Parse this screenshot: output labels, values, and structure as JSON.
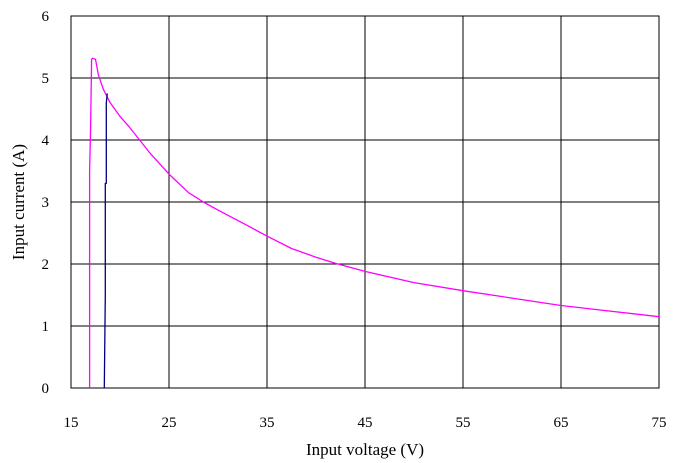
{
  "chart_data": {
    "type": "line",
    "title": "",
    "xlabel": "Input voltage (V)",
    "ylabel": "Input current (A)",
    "xlim": [
      15,
      75
    ],
    "ylim": [
      0,
      6
    ],
    "xticks": [
      15,
      25,
      35,
      45,
      55,
      65,
      75
    ],
    "yticks": [
      0,
      1,
      2,
      3,
      4,
      5,
      6
    ],
    "grid": true,
    "legend": "none",
    "series": [
      {
        "color": "#ff00ff",
        "x": [
          16.9,
          16.9,
          17.0,
          17.1,
          17.2,
          17.5,
          17.8,
          18.3,
          19.0,
          20.0,
          21.0,
          22.0,
          23.0,
          25.0,
          27.0,
          28.5,
          30.0,
          33.0,
          35.0,
          37.5,
          40.0,
          42.0,
          45.0,
          50.0,
          55.0,
          60.0,
          65.0,
          70.0,
          75.0
        ],
        "y": [
          0,
          3.5,
          4.2,
          5.3,
          5.32,
          5.3,
          5.05,
          4.82,
          4.6,
          4.38,
          4.2,
          4.0,
          3.8,
          3.45,
          3.15,
          3.0,
          2.87,
          2.62,
          2.45,
          2.25,
          2.11,
          2.01,
          1.88,
          1.7,
          1.57,
          1.45,
          1.33,
          1.24,
          1.15
        ]
      },
      {
        "color": "#000080",
        "x": [
          18.4,
          18.5,
          18.5,
          18.6,
          18.6,
          18.7
        ],
        "y": [
          0,
          1.5,
          3.3,
          3.3,
          4.6,
          4.75
        ]
      }
    ]
  }
}
